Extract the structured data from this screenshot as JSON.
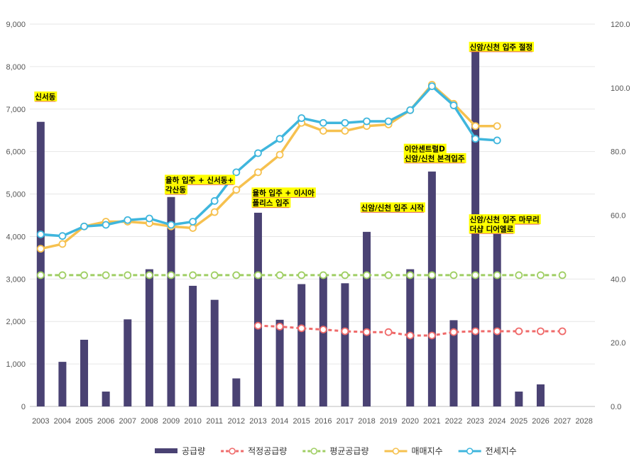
{
  "chart_data": {
    "type": "bar",
    "categories": [
      "2003",
      "2004",
      "2005",
      "2006",
      "2007",
      "2008",
      "2009",
      "2010",
      "2011",
      "2012",
      "2013",
      "2014",
      "2015",
      "2016",
      "2017",
      "2018",
      "2019",
      "2020",
      "2021",
      "2022",
      "2023",
      "2024",
      "2025",
      "2026",
      "2027",
      "2028"
    ],
    "y_left": {
      "lim": [
        0,
        9000
      ],
      "ticks": [
        "0",
        "1,000",
        "2,000",
        "3,000",
        "4,000",
        "5,000",
        "6,000",
        "7,000",
        "8,000",
        "9,000"
      ]
    },
    "y_right": {
      "lim": [
        0,
        120
      ],
      "ticks": [
        "0.0",
        "20.0",
        "40.0",
        "60.0",
        "80.0",
        "100.0",
        "120.0"
      ]
    },
    "grid": true,
    "legend_position": "bottom",
    "series": [
      {
        "name": "공급량",
        "kind": "bar",
        "axis": "left",
        "color": "#4a4273",
        "values": [
          6700,
          1050,
          1570,
          350,
          2050,
          3230,
          4930,
          2840,
          2510,
          660,
          4560,
          2040,
          2880,
          3060,
          2900,
          4110,
          null,
          3230,
          5530,
          2030,
          8550,
          4060,
          350,
          520,
          null,
          null
        ]
      },
      {
        "name": "적정공급량",
        "kind": "line",
        "axis": "left",
        "color": "#ef6a6a",
        "dash": "5,4",
        "values": [
          null,
          null,
          null,
          null,
          null,
          null,
          null,
          null,
          null,
          null,
          1900,
          1880,
          1840,
          1810,
          1770,
          1750,
          1750,
          1670,
          1670,
          1750,
          1770,
          1770,
          1770,
          1770,
          1770,
          null
        ]
      },
      {
        "name": "평균공급량",
        "kind": "line",
        "axis": "left",
        "color": "#9fce63",
        "dash": "6,4",
        "values": [
          3090,
          3090,
          3090,
          3090,
          3090,
          3090,
          3090,
          3090,
          3090,
          3090,
          3090,
          3090,
          3090,
          3090,
          3090,
          3090,
          3090,
          3090,
          3090,
          3090,
          3090,
          3090,
          3090,
          3090,
          3090,
          null
        ]
      },
      {
        "name": "매매지수",
        "kind": "line",
        "axis": "right",
        "color": "#f6c14f",
        "values": [
          49.5,
          51,
          56.5,
          58,
          58,
          57.5,
          56.5,
          56,
          61,
          68,
          73.5,
          79,
          89,
          86.5,
          86.5,
          88,
          88.5,
          93,
          101,
          95,
          88,
          88,
          null,
          null,
          null,
          null
        ]
      },
      {
        "name": "전세지수",
        "kind": "line",
        "axis": "right",
        "color": "#3fb6dd",
        "values": [
          54,
          53.5,
          56.5,
          57,
          58.5,
          59,
          57,
          58,
          64.5,
          73.5,
          79.5,
          84,
          90.5,
          89,
          89,
          89.5,
          89.5,
          93,
          100.5,
          94.5,
          84,
          83.5,
          null,
          null,
          null,
          null
        ]
      }
    ],
    "annotations": [
      {
        "text": "신서동",
        "category": "2003",
        "value": 7230
      },
      {
        "text": "율하 입주 + 신서동+",
        "category": "2009",
        "value": 5270
      },
      {
        "text": "각산동",
        "category": "2009",
        "value": 5040
      },
      {
        "text": "율하 입주 + 이시아",
        "category": "2013",
        "value": 4970
      },
      {
        "text": "폴리스 입주",
        "category": "2013",
        "value": 4730
      },
      {
        "text": "신암/신천 입주 시작",
        "category": "2018",
        "value": 4620
      },
      {
        "text": "이안센트럴D",
        "category": "2020",
        "value": 6000
      },
      {
        "text": "신암/신천 본격입주",
        "category": "2020",
        "value": 5780
      },
      {
        "text": "신암/신천 입주 절정",
        "category": "2023",
        "value": 8400
      },
      {
        "text": "신암/신천 입주 마무리",
        "category": "2023",
        "value": 4340
      },
      {
        "text": "더샵 디어엘로",
        "category": "2023",
        "value": 4120
      }
    ]
  }
}
